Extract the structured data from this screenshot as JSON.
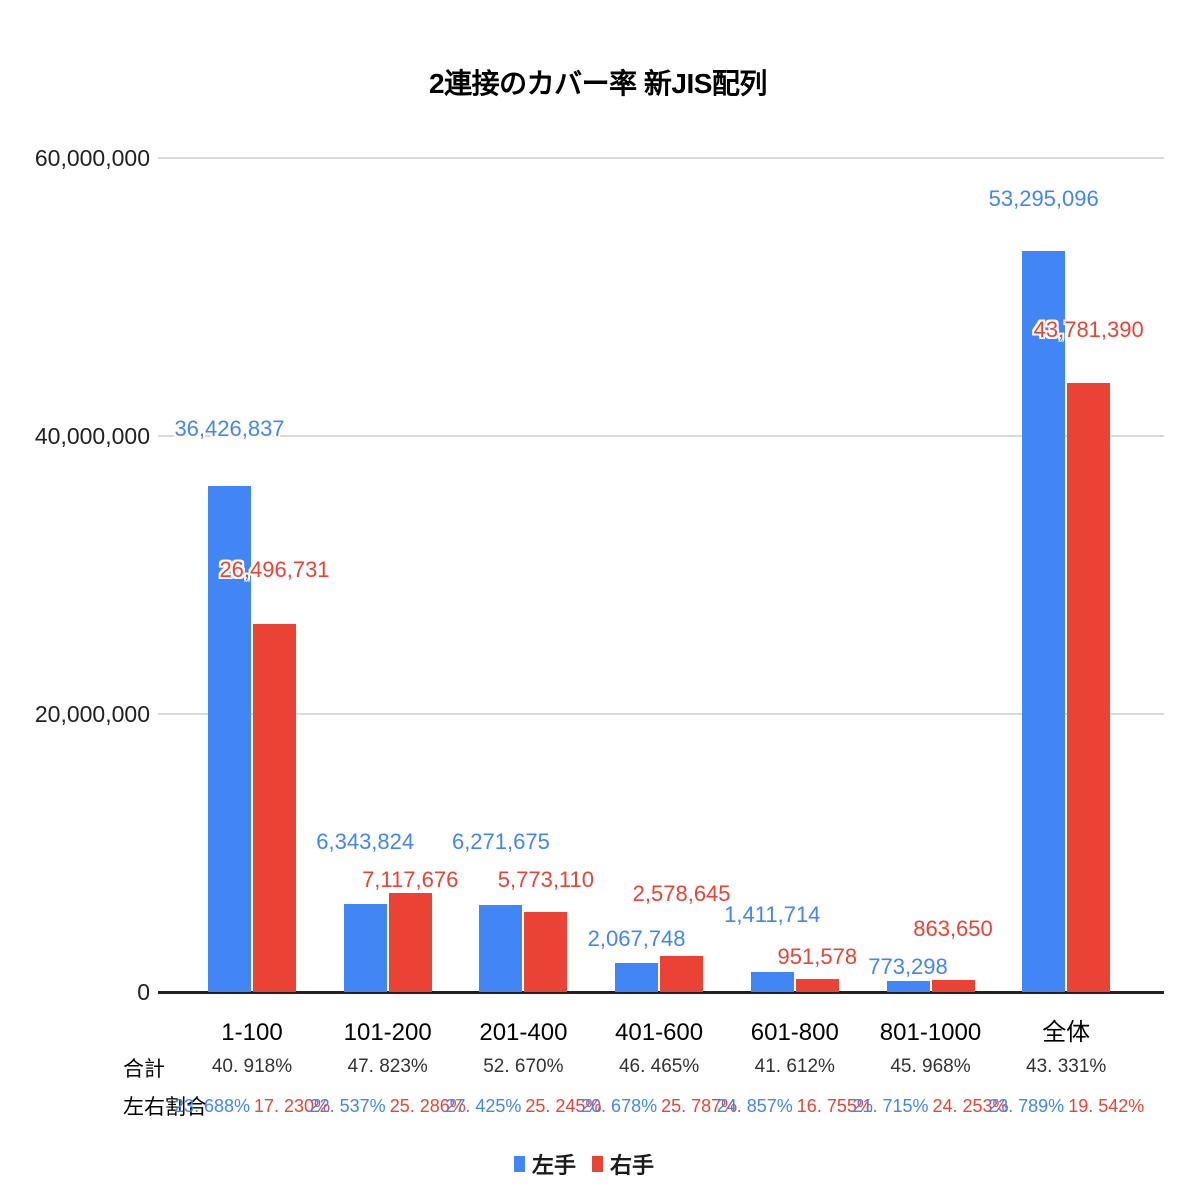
{
  "title": "2連接のカバー率 新JIS配列",
  "y_axis": {
    "ticks": [
      "60,000,000",
      "40,000,000",
      "20,000,000",
      "0"
    ]
  },
  "row_labels": {
    "total": "合計",
    "ratio": "左右割合"
  },
  "legend": {
    "items": [
      {
        "label": "左手",
        "color": "#4285F4"
      },
      {
        "label": "右手",
        "color": "#EA4335"
      }
    ]
  },
  "chart_data": {
    "type": "bar",
    "title": "2連接のカバー率 新JIS配列",
    "categories": [
      "1-100",
      "101-200",
      "201-400",
      "401-600",
      "601-800",
      "801-1000",
      "全体"
    ],
    "series": [
      {
        "name": "左手",
        "color": "#4285F4",
        "values": [
          36426837,
          6343824,
          6271675,
          2067748,
          1411714,
          773298,
          53295096
        ],
        "labels": [
          "36,426,837",
          "6,343,824",
          "6,271,675",
          "2,067,748",
          "1,411,714",
          "773,298",
          "53,295,096"
        ]
      },
      {
        "name": "右手",
        "color": "#EA4335",
        "values": [
          26496731,
          7117676,
          5773110,
          2578645,
          951578,
          863650,
          43781390
        ],
        "labels": [
          "26,496,731",
          "7,117,676",
          "5,773,110",
          "2,578,645",
          "951,578",
          "863,650",
          "43,781,390"
        ]
      }
    ],
    "total_percent": [
      "40. 918%",
      "47. 823%",
      "52. 670%",
      "46. 465%",
      "41. 612%",
      "45. 968%",
      "43. 331%"
    ],
    "ratio_left": [
      "23. 688%",
      "22. 537%",
      "27. 425%",
      "20. 678%",
      "24. 857%",
      "21. 715%",
      "23. 789%"
    ],
    "ratio_right": [
      "17. 230%",
      "25. 286%",
      "25. 245%",
      "25. 787%",
      "16. 755%",
      "24. 253%",
      "19. 542%"
    ],
    "ylim": [
      0,
      60000000
    ],
    "grid": true,
    "legend_position": "bottom"
  }
}
